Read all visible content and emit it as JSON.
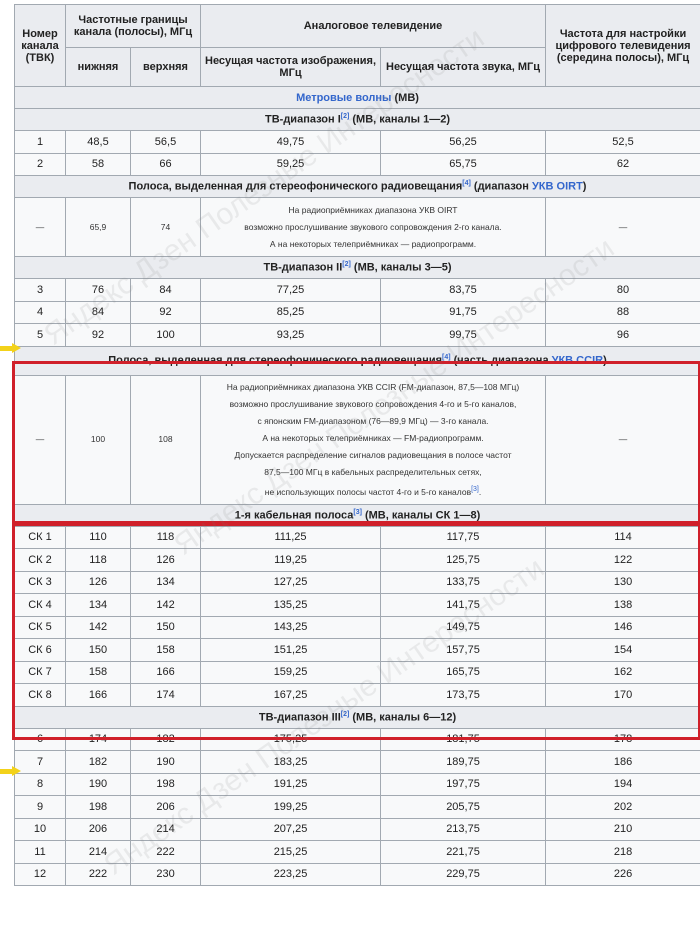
{
  "header": {
    "channel_number": "Номер канала (ТВК)",
    "band_limits": "Частотные границы канала (полосы), МГц",
    "lower": "нижняя",
    "upper": "верхняя",
    "analog_tv": "Аналоговое телевидение",
    "video_carrier": "Несущая частота изображения, МГц",
    "audio_carrier": "Несущая частота звука, МГц",
    "digital_freq": "Частота для настройки цифрового телевидения (середина полосы), МГц"
  },
  "sections": {
    "metre_link": "Метровые волны",
    "metre_rest": " (МВ)",
    "band1": "ТВ-диапазон I",
    "band1_ref": "[2]",
    "band1_rest": " (МВ, каналы 1—2)",
    "oirt": "Полоса, выделенная для стереофонического радиовещания",
    "oirt_ref": "[4]",
    "oirt_rest": " (диапазон ",
    "oirt_link": "УКВ OIRT",
    "oirt_close": ")",
    "band2": "ТВ-диапазон II",
    "band2_ref": "[2]",
    "band2_rest": " (МВ, каналы 3—5)",
    "ccir": "Полоса, выделенная для стереофонического радиовещания",
    "ccir_ref": "[4]",
    "ccir_rest": " (часть диапазона ",
    "ccir_link": "УКВ CCIR",
    "ccir_close": ")",
    "cable": "1-я кабельная полоса",
    "cable_ref": "[3]",
    "cable_rest": " (МВ, каналы СК 1—8)",
    "band3": "ТВ-диапазон III",
    "band3_ref": "[2]",
    "band3_rest": " (МВ, каналы 6—12)"
  },
  "band1_rows": [
    [
      "1",
      "48,5",
      "56,5",
      "49,75",
      "56,25",
      "52,5"
    ],
    [
      "2",
      "58",
      "66",
      "59,25",
      "65,75",
      "62"
    ]
  ],
  "oirt_row": {
    "ch": "—",
    "lo": "65,9",
    "hi": "74",
    "lines": [
      "На радиоприёмниках диапазона УКВ OIRT",
      "возможно прослушивание звукового сопровождения 2-го канала.",
      "А на некоторых телеприёмниках — радиопрограмм."
    ],
    "dig": "—"
  },
  "band2_rows": [
    [
      "3",
      "76",
      "84",
      "77,25",
      "83,75",
      "80"
    ],
    [
      "4",
      "84",
      "92",
      "85,25",
      "91,75",
      "88"
    ],
    [
      "5",
      "92",
      "100",
      "93,25",
      "99,75",
      "96"
    ]
  ],
  "ccir_row": {
    "ch": "—",
    "lo": "100",
    "hi": "108",
    "lines": [
      "На радиоприёмниках диапазона УКВ CCIR (FM-диапазон, 87,5—108 МГц)",
      "возможно прослушивание звукового сопровождения 4-го и 5-го каналов,",
      "с японским FM-диапазоном (76—89,9 МГц) — 3-го канала.",
      "А на некоторых телеприёмниках — FM-радиопрограмм.",
      "Допускается распределение сигналов радиовещания в полосе частот",
      "87,5—100 МГц в кабельных распределительных сетях,",
      "не использующих полосы частот 4-го и 5-го каналов"
    ],
    "ref": "[3]",
    "end": ".",
    "dig": "—"
  },
  "cable_rows": [
    [
      "СК 1",
      "110",
      "118",
      "111,25",
      "117,75",
      "114"
    ],
    [
      "СК 2",
      "118",
      "126",
      "119,25",
      "125,75",
      "122"
    ],
    [
      "СК 3",
      "126",
      "134",
      "127,25",
      "133,75",
      "130"
    ],
    [
      "СК 4",
      "134",
      "142",
      "135,25",
      "141,75",
      "138"
    ],
    [
      "СК 5",
      "142",
      "150",
      "143,25",
      "149,75",
      "146"
    ],
    [
      "СК 6",
      "150",
      "158",
      "151,25",
      "157,75",
      "154"
    ],
    [
      "СК 7",
      "158",
      "166",
      "159,25",
      "165,75",
      "162"
    ],
    [
      "СК 8",
      "166",
      "174",
      "167,25",
      "173,75",
      "170"
    ]
  ],
  "band3_rows": [
    [
      "6",
      "174",
      "182",
      "175,25",
      "181,75",
      "178"
    ],
    [
      "7",
      "182",
      "190",
      "183,25",
      "189,75",
      "186"
    ],
    [
      "8",
      "190",
      "198",
      "191,25",
      "197,75",
      "194"
    ],
    [
      "9",
      "198",
      "206",
      "199,25",
      "205,75",
      "202"
    ],
    [
      "10",
      "206",
      "214",
      "207,25",
      "213,75",
      "210"
    ],
    [
      "11",
      "214",
      "222",
      "215,25",
      "221,75",
      "218"
    ],
    [
      "12",
      "222",
      "230",
      "223,25",
      "229,75",
      "226"
    ]
  ],
  "colors": {
    "highlight_box": "#d0202a",
    "arrow": "#f3d21a",
    "link": "#3366cc"
  },
  "watermark": "Яндекс Дзен Полезные Интересности"
}
